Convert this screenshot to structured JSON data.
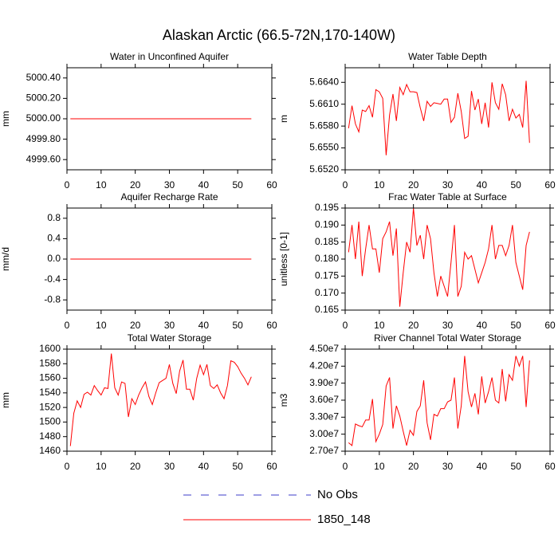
{
  "title": "Alaskan Arctic (66.5-72N,170-140W)",
  "legend": [
    {
      "name": "No Obs",
      "color": "#3c3cc8",
      "dash": true
    },
    {
      "name": "1850_148",
      "color": "#ff0000",
      "dash": false
    }
  ],
  "chart_data": [
    {
      "type": "line",
      "title": "Water in Unconfined Aquifer",
      "ylabel": "mm",
      "color": "#ff0000",
      "x": [
        1,
        2,
        3,
        4,
        5,
        6,
        7,
        8,
        9,
        10,
        11,
        12,
        13,
        14,
        15,
        16,
        17,
        18,
        19,
        20,
        21,
        22,
        23,
        24,
        25,
        26,
        27,
        28,
        29,
        30,
        31,
        32,
        33,
        34,
        35,
        36,
        37,
        38,
        39,
        40,
        41,
        42,
        43,
        44,
        45,
        46,
        47,
        48,
        49,
        50,
        51,
        52,
        53,
        54
      ],
      "values": [
        5000,
        5000,
        5000,
        5000,
        5000,
        5000,
        5000,
        5000,
        5000,
        5000,
        5000,
        5000,
        5000,
        5000,
        5000,
        5000,
        5000,
        5000,
        5000,
        5000,
        5000,
        5000,
        5000,
        5000,
        5000,
        5000,
        5000,
        5000,
        5000,
        5000,
        5000,
        5000,
        5000,
        5000,
        5000,
        5000,
        5000,
        5000,
        5000,
        5000,
        5000,
        5000,
        5000,
        5000,
        5000,
        5000,
        5000,
        5000,
        5000,
        5000,
        5000,
        5000,
        5000,
        5000
      ],
      "xlim": [
        0,
        60
      ],
      "xticks": [
        0,
        10,
        20,
        30,
        40,
        50,
        60
      ],
      "ylim": [
        4999.5,
        5000.5
      ],
      "yticks": [
        {
          "value": 4999.6,
          "label": "4999.60"
        },
        {
          "value": 4999.8,
          "label": "4999.80"
        },
        {
          "value": 5000,
          "label": "5000.00"
        },
        {
          "value": 5000.2,
          "label": "5000.20"
        },
        {
          "value": 5000.4,
          "label": "5000.40"
        }
      ]
    },
    {
      "type": "line",
      "title": "Water Table Depth",
      "ylabel": "m",
      "color": "#ff0000",
      "x": [
        1,
        2,
        3,
        4,
        5,
        6,
        7,
        8,
        9,
        10,
        11,
        12,
        13,
        14,
        15,
        16,
        17,
        18,
        19,
        20,
        21,
        22,
        23,
        24,
        25,
        26,
        27,
        28,
        29,
        30,
        31,
        32,
        33,
        34,
        35,
        36,
        37,
        38,
        39,
        40,
        41,
        42,
        43,
        44,
        45,
        46,
        47,
        48,
        49,
        50,
        51,
        52,
        53,
        54
      ],
      "values": [
        5.6577,
        5.6608,
        5.6583,
        5.6572,
        5.6602,
        5.66,
        5.6608,
        5.6592,
        5.663,
        5.6627,
        5.6618,
        5.654,
        5.6595,
        5.6624,
        5.6587,
        5.6633,
        5.6623,
        5.6637,
        5.6627,
        5.6627,
        5.6626,
        5.6605,
        5.6587,
        5.6614,
        5.6607,
        5.6612,
        5.6611,
        5.661,
        5.6617,
        5.6617,
        5.6585,
        5.6592,
        5.6625,
        5.66,
        5.6563,
        5.6566,
        5.6628,
        5.6602,
        5.6617,
        5.6583,
        5.6612,
        5.6578,
        5.664,
        5.6612,
        5.6603,
        5.6638,
        5.6623,
        5.6587,
        5.6603,
        5.6591,
        5.6596,
        5.6578,
        5.6642,
        5.6557
      ],
      "xlim": [
        0,
        60
      ],
      "xticks": [
        0,
        10,
        20,
        30,
        40,
        50,
        60
      ],
      "ylim": [
        5.652,
        5.666
      ],
      "yticks": [
        {
          "value": 5.652,
          "label": "5.6520"
        },
        {
          "value": 5.655,
          "label": "5.6550"
        },
        {
          "value": 5.658,
          "label": "5.6580"
        },
        {
          "value": 5.661,
          "label": "5.6610"
        },
        {
          "value": 5.664,
          "label": "5.6640"
        }
      ]
    },
    {
      "type": "line",
      "title": "Aquifer Recharge Rate",
      "ylabel": "mm/d",
      "color": "#ff0000",
      "x": [
        1,
        2,
        3,
        4,
        5,
        6,
        7,
        8,
        9,
        10,
        11,
        12,
        13,
        14,
        15,
        16,
        17,
        18,
        19,
        20,
        21,
        22,
        23,
        24,
        25,
        26,
        27,
        28,
        29,
        30,
        31,
        32,
        33,
        34,
        35,
        36,
        37,
        38,
        39,
        40,
        41,
        42,
        43,
        44,
        45,
        46,
        47,
        48,
        49,
        50,
        51,
        52,
        53,
        54
      ],
      "values": [
        0,
        0,
        0,
        0,
        0,
        0,
        0,
        0,
        0,
        0,
        0,
        0,
        0,
        0,
        0,
        0,
        0,
        0,
        0,
        0,
        0,
        0,
        0,
        0,
        0,
        0,
        0,
        0,
        0,
        0,
        0,
        0,
        0,
        0,
        0,
        0,
        0,
        0,
        0,
        0,
        0,
        0,
        0,
        0,
        0,
        0,
        0,
        0,
        0,
        0,
        0,
        0,
        0,
        0
      ],
      "xlim": [
        0,
        60
      ],
      "xticks": [
        0,
        10,
        20,
        30,
        40,
        50,
        60
      ],
      "ylim": [
        -1,
        1
      ],
      "yticks": [
        -0.8,
        -0.4,
        {
          "value": 0,
          "label": "0.0"
        },
        0.4,
        0.8
      ]
    },
    {
      "type": "line",
      "title": "Frac Water Table at Surface",
      "ylabel": "unitless [0-1]",
      "color": "#ff0000",
      "x": [
        1,
        2,
        3,
        4,
        5,
        6,
        7,
        8,
        9,
        10,
        11,
        12,
        13,
        14,
        15,
        16,
        17,
        18,
        19,
        20,
        21,
        22,
        23,
        24,
        25,
        26,
        27,
        28,
        29,
        30,
        31,
        32,
        33,
        34,
        35,
        36,
        37,
        38,
        39,
        40,
        41,
        42,
        43,
        44,
        45,
        46,
        47,
        48,
        49,
        50,
        51,
        52,
        53,
        54
      ],
      "values": [
        0.182,
        0.19,
        0.18,
        0.191,
        0.175,
        0.183,
        0.19,
        0.183,
        0.183,
        0.176,
        0.186,
        0.188,
        0.191,
        0.181,
        0.189,
        0.166,
        0.176,
        0.185,
        0.182,
        0.195,
        0.184,
        0.187,
        0.18,
        0.19,
        0.186,
        0.176,
        0.169,
        0.175,
        0.172,
        0.169,
        0.179,
        0.19,
        0.169,
        0.172,
        0.182,
        0.18,
        0.181,
        0.177,
        0.173,
        0.176,
        0.179,
        0.183,
        0.19,
        0.18,
        0.184,
        0.184,
        0.181,
        0.184,
        0.19,
        0.179,
        0.175,
        0.171,
        0.184,
        0.188
      ],
      "xlim": [
        0,
        60
      ],
      "xticks": [
        0,
        10,
        20,
        30,
        40,
        50,
        60
      ],
      "ylim": [
        0.165,
        0.195
      ],
      "yticks": [
        0.165,
        {
          "value": 0.17,
          "label": "0.170"
        },
        0.175,
        {
          "value": 0.18,
          "label": "0.180"
        },
        0.185,
        {
          "value": 0.19,
          "label": "0.190"
        },
        0.195
      ]
    },
    {
      "type": "line",
      "title": "Total Water Storage",
      "ylabel": "mm",
      "color": "#ff0000",
      "x": [
        1,
        2,
        3,
        4,
        5,
        6,
        7,
        8,
        9,
        10,
        11,
        12,
        13,
        14,
        15,
        16,
        17,
        18,
        19,
        20,
        21,
        22,
        23,
        24,
        25,
        26,
        27,
        28,
        29,
        30,
        31,
        32,
        33,
        34,
        35,
        36,
        37,
        38,
        39,
        40,
        41,
        42,
        43,
        44,
        45,
        46,
        47,
        48,
        49,
        50,
        51,
        52,
        53,
        54
      ],
      "values": [
        1467,
        1512,
        1529,
        1520,
        1538,
        1541,
        1537,
        1550,
        1543,
        1537,
        1547,
        1546,
        1594,
        1547,
        1537,
        1555,
        1553,
        1507,
        1532,
        1524,
        1537,
        1547,
        1555,
        1535,
        1524,
        1540,
        1554,
        1557,
        1560,
        1579,
        1553,
        1539,
        1570,
        1585,
        1545,
        1545,
        1530,
        1560,
        1578,
        1565,
        1579,
        1550,
        1546,
        1551,
        1540,
        1532,
        1550,
        1584,
        1582,
        1576,
        1567,
        1560,
        1551,
        1562
      ],
      "xlim": [
        0,
        60
      ],
      "xticks": [
        0,
        10,
        20,
        30,
        40,
        50,
        60
      ],
      "ylim": [
        1460,
        1600
      ],
      "yticks": [
        1460,
        1480,
        1500,
        1520,
        1540,
        1560,
        1580,
        1600
      ]
    },
    {
      "type": "line",
      "title": "River Channel Total Water Storage",
      "ylabel": "m3",
      "color": "#ff0000",
      "x": [
        1,
        2,
        3,
        4,
        5,
        6,
        7,
        8,
        9,
        10,
        11,
        12,
        13,
        14,
        15,
        16,
        17,
        18,
        19,
        20,
        21,
        22,
        23,
        24,
        25,
        26,
        27,
        28,
        29,
        30,
        31,
        32,
        33,
        34,
        35,
        36,
        37,
        38,
        39,
        40,
        41,
        42,
        43,
        44,
        45,
        46,
        47,
        48,
        49,
        50,
        51,
        52,
        53,
        54
      ],
      "values": [
        28500000,
        28000000,
        31800000,
        31500000,
        31300000,
        32500000,
        32500000,
        36200000,
        28700000,
        30000000,
        31700000,
        38500000,
        40000000,
        31000000,
        35000000,
        33200000,
        30500000,
        28000000,
        30700000,
        29800000,
        34000000,
        35000000,
        39500000,
        32000000,
        29000000,
        33500000,
        33200000,
        34500000,
        34500000,
        35700000,
        36000000,
        40000000,
        31000000,
        35000000,
        43800000,
        37500000,
        34800000,
        37200000,
        33500000,
        40200000,
        35500000,
        37500000,
        40000000,
        36000000,
        35500000,
        41500000,
        35800000,
        40500000,
        39500000,
        43800000,
        42000000,
        43800000,
        34800000,
        43000000
      ],
      "xlim": [
        0,
        60
      ],
      "xticks": [
        0,
        10,
        20,
        30,
        40,
        50,
        60
      ],
      "ylim": [
        27000000,
        45000000
      ],
      "yticks": [
        {
          "value": 27000000,
          "label": "2.70e7"
        },
        {
          "value": 30000000,
          "label": "3.00e7"
        },
        {
          "value": 33000000,
          "label": "3.30e7"
        },
        {
          "value": 36000000,
          "label": "3.60e7"
        },
        {
          "value": 39000000,
          "label": "3.90e7"
        },
        {
          "value": 42000000,
          "label": "4.20e7"
        },
        {
          "value": 45000000,
          "label": "4.50e7"
        }
      ]
    }
  ]
}
